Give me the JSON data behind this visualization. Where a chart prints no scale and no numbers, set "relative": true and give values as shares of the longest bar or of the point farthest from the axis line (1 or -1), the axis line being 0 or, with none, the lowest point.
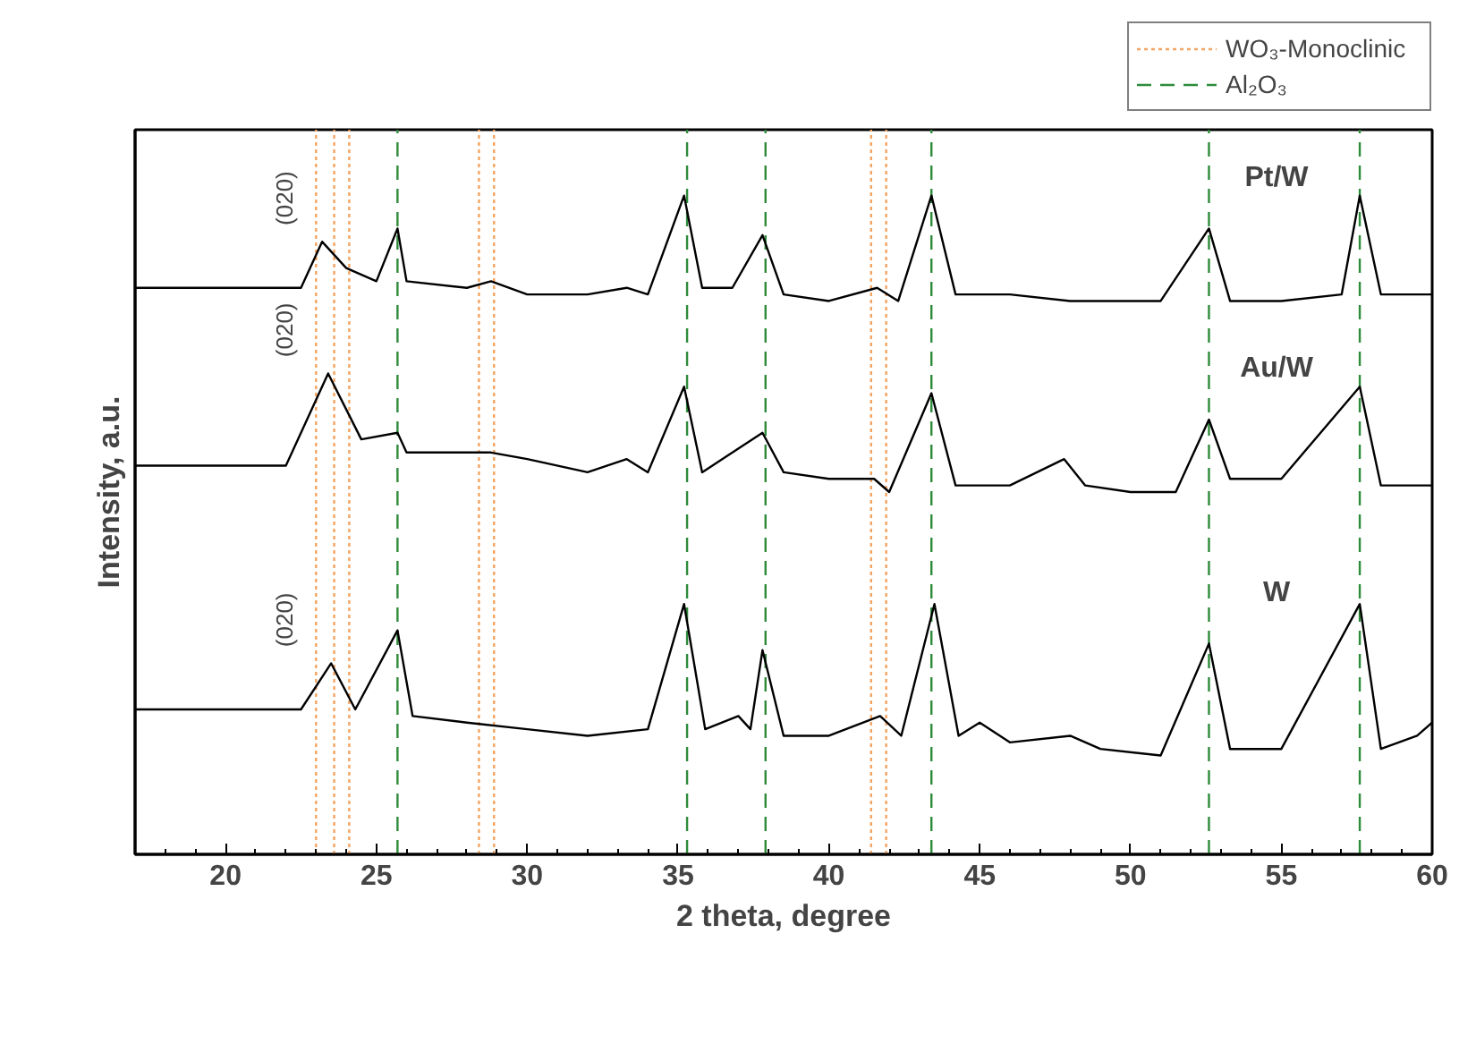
{
  "chart_data": {
    "type": "line",
    "relative": true,
    "xlabel": "2 theta, degree",
    "ylabel": "Intensity, a.u.",
    "xlim": [
      17,
      60
    ],
    "xticks": [
      20,
      25,
      30,
      35,
      40,
      45,
      50,
      55,
      60
    ],
    "grid": false,
    "legend": "top right",
    "marker": "none",
    "line_style": "solid",
    "series": [
      {
        "name": "Pt/W",
        "color": "#000000",
        "x": [
          17,
          20,
          22.5,
          23.2,
          24,
          25,
          25.7,
          26,
          28,
          28.8,
          30,
          32,
          33.3,
          34,
          35.2,
          35.8,
          36.8,
          37.8,
          38.5,
          40,
          41.6,
          42.3,
          43.4,
          44.2,
          46,
          48,
          50,
          51,
          52.6,
          53.3,
          55,
          57,
          57.6,
          58.3,
          60
        ],
        "values": [
          0.86,
          0.86,
          0.86,
          0.93,
          0.89,
          0.87,
          0.95,
          0.87,
          0.86,
          0.87,
          0.85,
          0.85,
          0.86,
          0.85,
          1.0,
          0.86,
          0.86,
          0.94,
          0.85,
          0.84,
          0.86,
          0.84,
          1.0,
          0.85,
          0.85,
          0.84,
          0.84,
          0.84,
          0.95,
          0.84,
          0.84,
          0.85,
          1.0,
          0.85,
          0.85
        ]
      },
      {
        "name": "Au/W",
        "color": "#000000",
        "x": [
          17,
          20,
          22,
          23.4,
          24.5,
          25.7,
          26,
          28.8,
          30,
          32,
          33.3,
          34,
          35.2,
          35.8,
          37.8,
          38.5,
          40,
          41.5,
          42,
          43.4,
          44.2,
          46,
          47.8,
          48.5,
          50,
          51.5,
          52.6,
          53.3,
          55,
          57.6,
          58.3,
          60
        ],
        "values": [
          0.59,
          0.59,
          0.59,
          0.73,
          0.63,
          0.64,
          0.61,
          0.61,
          0.6,
          0.58,
          0.6,
          0.58,
          0.71,
          0.58,
          0.64,
          0.58,
          0.57,
          0.57,
          0.55,
          0.7,
          0.56,
          0.56,
          0.6,
          0.56,
          0.55,
          0.55,
          0.66,
          0.57,
          0.57,
          0.71,
          0.56,
          0.56
        ]
      },
      {
        "name": "W",
        "color": "#000000",
        "x": [
          17,
          20,
          22.5,
          23.5,
          24.3,
          25.7,
          26.2,
          28,
          30,
          32,
          34,
          35.2,
          35.9,
          37,
          37.4,
          37.8,
          38.5,
          40,
          41.7,
          42.4,
          43.5,
          44.3,
          45,
          46,
          48,
          49,
          51,
          52.6,
          53.3,
          55,
          57.6,
          58.3,
          59.5,
          60
        ],
        "values": [
          0.22,
          0.22,
          0.22,
          0.29,
          0.22,
          0.34,
          0.21,
          0.2,
          0.19,
          0.18,
          0.19,
          0.38,
          0.19,
          0.21,
          0.19,
          0.31,
          0.18,
          0.18,
          0.21,
          0.18,
          0.38,
          0.18,
          0.2,
          0.17,
          0.18,
          0.16,
          0.15,
          0.32,
          0.16,
          0.16,
          0.38,
          0.16,
          0.18,
          0.2
        ]
      }
    ],
    "ref_lines": [
      {
        "axis": "x",
        "value": 23.0,
        "label": "WO₃-Monoclinic",
        "color": "#f4a460",
        "line_style": "dotted"
      },
      {
        "axis": "x",
        "value": 23.6,
        "color": "#f4a460",
        "line_style": "dotted"
      },
      {
        "axis": "x",
        "value": 24.1,
        "color": "#f4a460",
        "line_style": "dotted"
      },
      {
        "axis": "x",
        "value": 28.4,
        "color": "#f4a460",
        "line_style": "dotted"
      },
      {
        "axis": "x",
        "value": 28.9,
        "color": "#f4a460",
        "line_style": "dotted"
      },
      {
        "axis": "x",
        "value": 41.4,
        "color": "#f4a460",
        "line_style": "dotted"
      },
      {
        "axis": "x",
        "value": 41.9,
        "color": "#f4a460",
        "line_style": "dotted"
      },
      {
        "axis": "x",
        "value": 25.7,
        "label": "Al₂O₃",
        "color": "#2e8b3a",
        "line_style": "dashed"
      },
      {
        "axis": "x",
        "value": 35.3,
        "color": "#2e8b3a",
        "line_style": "dashed"
      },
      {
        "axis": "x",
        "value": 37.9,
        "color": "#2e8b3a",
        "line_style": "dashed"
      },
      {
        "axis": "x",
        "value": 43.4,
        "color": "#2e8b3a",
        "line_style": "dashed"
      },
      {
        "axis": "x",
        "value": 52.6,
        "color": "#2e8b3a",
        "line_style": "dashed"
      },
      {
        "axis": "x",
        "value": 57.6,
        "color": "#2e8b3a",
        "line_style": "dashed"
      }
    ],
    "annotations": [
      "(020)",
      "(020)",
      "(020)"
    ]
  }
}
